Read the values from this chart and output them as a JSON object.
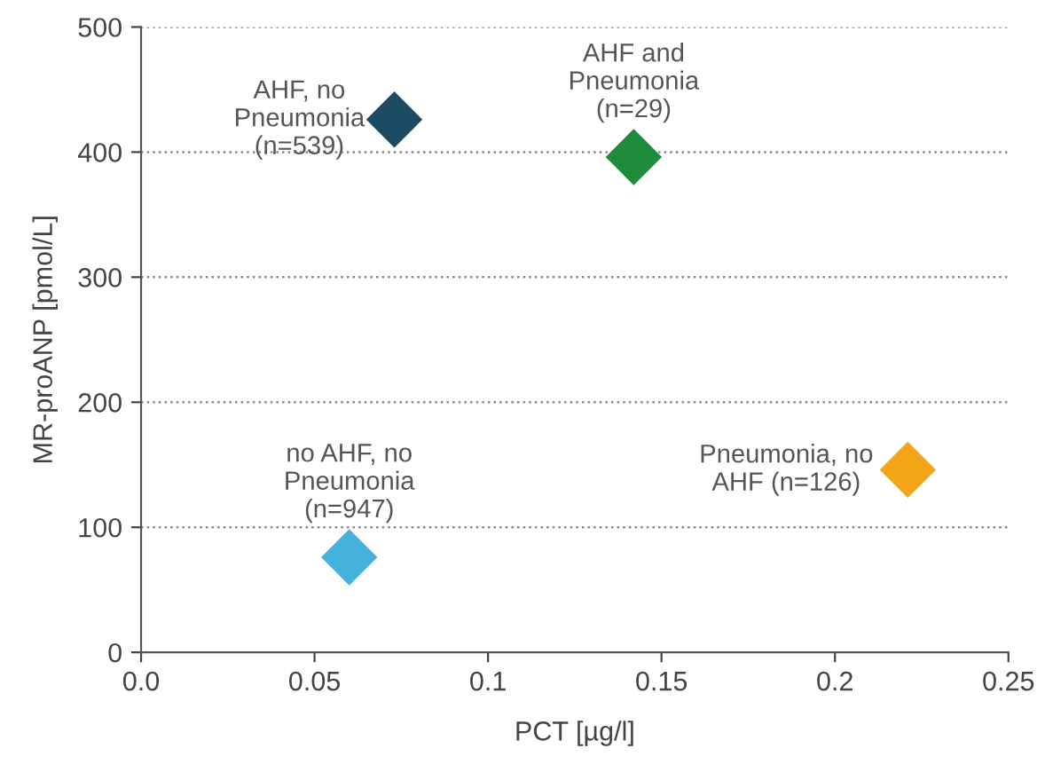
{
  "chart_data": {
    "type": "scatter",
    "xlabel": "PCT [µg/l]",
    "ylabel": "MR-proANP [pmol/L]",
    "series": [
      {
        "name": "AHF, no\nPneumonia\n(n=539)",
        "color": "#1b4c64",
        "x": [
          0.073
        ],
        "values": [
          426
        ]
      },
      {
        "name": "AHF and\nPneumonia\n(n=29)",
        "color": "#1e8c3a",
        "x": [
          0.142
        ],
        "values": [
          396
        ]
      },
      {
        "name": "no AHF, no\nPneumonia\n(n=947)",
        "color": "#44b2dc",
        "x": [
          0.06
        ],
        "values": [
          76
        ]
      },
      {
        "name": "Pneumonia, no\nAHF (n=126)",
        "color": "#f3a517",
        "x": [
          0.221
        ],
        "values": [
          146
        ]
      }
    ],
    "xlim": [
      0,
      0.25
    ],
    "xticks": [
      {
        "value": 0,
        "label": "0.0"
      },
      0.05,
      0.1,
      0.15,
      0.2,
      0.25
    ],
    "ylim": [
      0,
      500
    ],
    "yticks": [
      0,
      100,
      200,
      300,
      400,
      500
    ],
    "grid": "y",
    "marker": "diamond",
    "legend": false
  }
}
